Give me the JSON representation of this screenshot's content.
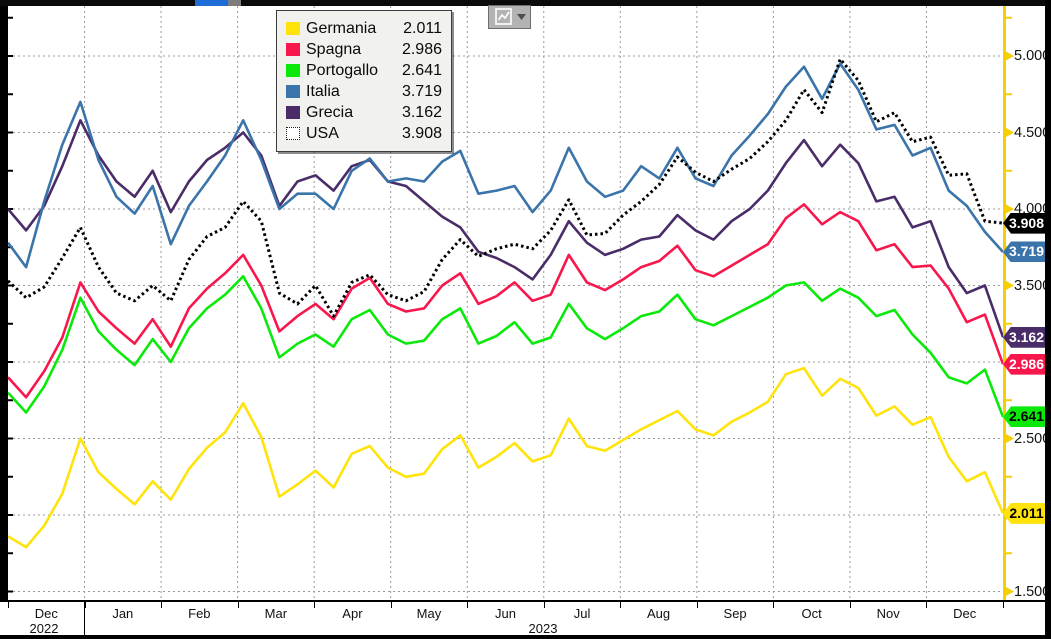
{
  "chart_data": {
    "type": "line",
    "x_months": [
      "Dec",
      "Jan",
      "Feb",
      "Mar",
      "Apr",
      "May",
      "Jun",
      "Jul",
      "Aug",
      "Sep",
      "Oct",
      "Nov",
      "Dec"
    ],
    "years": [
      "2022",
      "2023"
    ],
    "ylabel": "",
    "xlabel": "",
    "ylim": [
      1.44,
      5.33
    ],
    "grid": true,
    "legend_position": "top-left",
    "y_gridlines": [
      5.0,
      4.5,
      4.0,
      3.5,
      3.0,
      2.5,
      2.0,
      1.5
    ],
    "y_axis_labels_visible": [
      "5.000",
      "4.500",
      "4.000",
      "3.500",
      "2.500",
      "1.500"
    ],
    "x_tick_count": 13,
    "draw_order": [
      2,
      1,
      4,
      3,
      0,
      5
    ],
    "series": [
      {
        "name": "Germania",
        "color": "#ffe30a",
        "badge_text": "#000000",
        "dashed": false,
        "last_label": "2.011",
        "values": [
          1.86,
          1.79,
          1.93,
          2.14,
          2.5,
          2.28,
          2.17,
          2.07,
          2.22,
          2.1,
          2.3,
          2.44,
          2.54,
          2.73,
          2.51,
          2.12,
          2.2,
          2.29,
          2.18,
          2.4,
          2.45,
          2.31,
          2.25,
          2.27,
          2.43,
          2.52,
          2.31,
          2.38,
          2.47,
          2.35,
          2.39,
          2.63,
          2.45,
          2.42,
          2.49,
          2.56,
          2.62,
          2.68,
          2.56,
          2.52,
          2.61,
          2.67,
          2.74,
          2.92,
          2.96,
          2.78,
          2.89,
          2.83,
          2.65,
          2.71,
          2.59,
          2.64,
          2.38,
          2.22,
          2.28,
          2.011
        ]
      },
      {
        "name": "Spagna",
        "color": "#f8174c",
        "badge_text": "#ffffff",
        "dashed": false,
        "last_label": "2.986",
        "values": [
          2.9,
          2.77,
          2.94,
          3.16,
          3.52,
          3.33,
          3.22,
          3.12,
          3.28,
          3.1,
          3.35,
          3.48,
          3.58,
          3.7,
          3.5,
          3.2,
          3.3,
          3.38,
          3.28,
          3.48,
          3.55,
          3.38,
          3.33,
          3.35,
          3.5,
          3.58,
          3.38,
          3.43,
          3.52,
          3.4,
          3.44,
          3.7,
          3.52,
          3.47,
          3.54,
          3.62,
          3.66,
          3.76,
          3.6,
          3.56,
          3.63,
          3.7,
          3.77,
          3.94,
          4.03,
          3.9,
          3.98,
          3.92,
          3.73,
          3.77,
          3.62,
          3.63,
          3.48,
          3.26,
          3.31,
          2.986
        ]
      },
      {
        "name": "Portogallo",
        "color": "#0be90b",
        "badge_text": "#000000",
        "dashed": false,
        "last_label": "2.641",
        "values": [
          2.8,
          2.67,
          2.84,
          3.08,
          3.42,
          3.2,
          3.08,
          2.98,
          3.15,
          3.0,
          3.22,
          3.35,
          3.44,
          3.56,
          3.35,
          3.03,
          3.12,
          3.18,
          3.1,
          3.28,
          3.34,
          3.18,
          3.12,
          3.14,
          3.28,
          3.35,
          3.12,
          3.17,
          3.26,
          3.12,
          3.16,
          3.38,
          3.22,
          3.15,
          3.22,
          3.3,
          3.33,
          3.44,
          3.28,
          3.24,
          3.3,
          3.36,
          3.42,
          3.5,
          3.52,
          3.4,
          3.48,
          3.42,
          3.3,
          3.34,
          3.18,
          3.06,
          2.9,
          2.86,
          2.95,
          2.641
        ]
      },
      {
        "name": "Italia",
        "color": "#3a74aa",
        "badge_text": "#ffffff",
        "dashed": false,
        "last_label": "3.719",
        "values": [
          3.78,
          3.62,
          4.05,
          4.42,
          4.7,
          4.32,
          4.08,
          3.97,
          4.15,
          3.77,
          4.02,
          4.18,
          4.35,
          4.58,
          4.32,
          4.0,
          4.1,
          4.1,
          4.0,
          4.25,
          4.33,
          4.18,
          4.2,
          4.18,
          4.31,
          4.38,
          4.1,
          4.12,
          4.15,
          3.98,
          4.12,
          4.4,
          4.18,
          4.08,
          4.12,
          4.28,
          4.2,
          4.4,
          4.2,
          4.15,
          4.35,
          4.48,
          4.62,
          4.8,
          4.93,
          4.72,
          4.95,
          4.78,
          4.52,
          4.55,
          4.35,
          4.4,
          4.12,
          4.02,
          3.85,
          3.719
        ]
      },
      {
        "name": "Grecia",
        "color": "#4a2c68",
        "badge_text": "#ffffff",
        "dashed": false,
        "last_label": "3.162",
        "values": [
          4.0,
          3.86,
          4.02,
          4.28,
          4.58,
          4.35,
          4.18,
          4.08,
          4.25,
          3.98,
          4.18,
          4.32,
          4.4,
          4.5,
          4.35,
          4.02,
          4.18,
          4.22,
          4.12,
          4.28,
          4.32,
          4.18,
          4.15,
          4.05,
          3.95,
          3.88,
          3.72,
          3.68,
          3.62,
          3.54,
          3.7,
          3.92,
          3.78,
          3.7,
          3.74,
          3.8,
          3.82,
          3.96,
          3.86,
          3.8,
          3.92,
          4.0,
          4.12,
          4.3,
          4.45,
          4.28,
          4.42,
          4.3,
          4.05,
          4.08,
          3.88,
          3.92,
          3.62,
          3.45,
          3.5,
          3.162
        ]
      },
      {
        "name": "USA",
        "color": "#000000",
        "badge_text": "#ffffff",
        "dashed": true,
        "last_label": "3.908",
        "values": [
          3.53,
          3.42,
          3.49,
          3.68,
          3.88,
          3.62,
          3.45,
          3.4,
          3.5,
          3.4,
          3.67,
          3.82,
          3.88,
          4.05,
          3.92,
          3.45,
          3.38,
          3.5,
          3.3,
          3.52,
          3.57,
          3.44,
          3.4,
          3.46,
          3.67,
          3.8,
          3.69,
          3.74,
          3.77,
          3.74,
          3.86,
          4.06,
          3.83,
          3.84,
          3.96,
          4.05,
          4.16,
          4.34,
          4.24,
          4.18,
          4.26,
          4.33,
          4.44,
          4.58,
          4.78,
          4.63,
          4.98,
          4.84,
          4.57,
          4.63,
          4.44,
          4.47,
          4.22,
          4.23,
          3.92,
          3.908
        ]
      }
    ]
  },
  "ui": {
    "background": "#000000",
    "plot_background": "#ffffff",
    "grid_color": "#999999",
    "axis_color": "#f7cf00",
    "topbar_accent": "#1f6cd6",
    "chart_button_icon": "line-chart-icon",
    "chart_button_caret": "dropdown-caret-icon"
  }
}
